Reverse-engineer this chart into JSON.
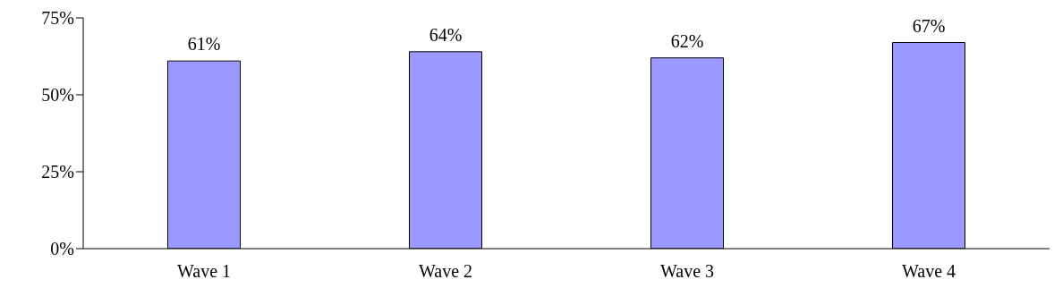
{
  "chart_data": {
    "type": "bar",
    "categories": [
      "Wave 1",
      "Wave 2",
      "Wave 3",
      "Wave 4"
    ],
    "values": [
      61,
      64,
      62,
      67
    ],
    "value_labels": [
      "61%",
      "64%",
      "62%",
      "67%"
    ],
    "color": "#9999ff",
    "ylim": [
      0,
      75
    ],
    "yticks": [
      {
        "value": 0,
        "label": "0%"
      },
      {
        "value": 25,
        "label": "25%"
      },
      {
        "value": 50,
        "label": "50%"
      },
      {
        "value": 75,
        "label": "75%"
      }
    ],
    "grid": false,
    "legend": false
  }
}
